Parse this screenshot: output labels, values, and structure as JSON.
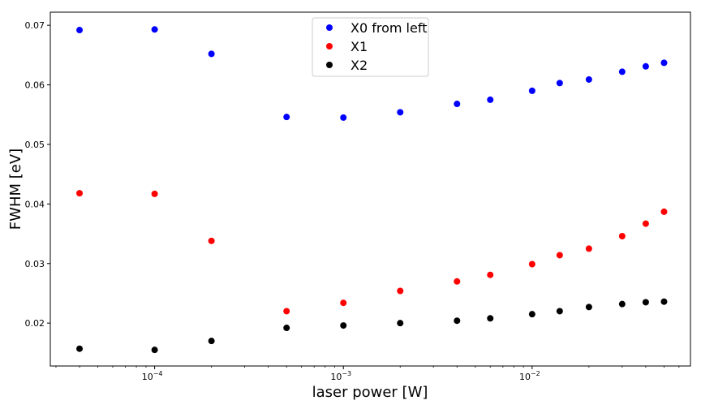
{
  "chart_data": {
    "type": "scatter",
    "title": "",
    "xlabel": "laser power [W]",
    "ylabel": "FWHM [eV]",
    "xscale": "log",
    "xlim": [
      2.8e-05,
      0.069
    ],
    "ylim": [
      0.0128,
      0.0722
    ],
    "x": [
      4e-05,
      0.0001,
      0.0002,
      0.0005,
      0.001,
      0.002,
      0.004,
      0.006,
      0.01,
      0.014,
      0.02,
      0.03,
      0.04,
      0.05
    ],
    "x_ticks": [
      {
        "value": 0.0001,
        "base": "10",
        "exp": "−4"
      },
      {
        "value": 0.001,
        "base": "10",
        "exp": "−3"
      },
      {
        "value": 0.01,
        "base": "10",
        "exp": "−2"
      }
    ],
    "y_ticks": [
      {
        "value": 0.02,
        "label": "0.02"
      },
      {
        "value": 0.03,
        "label": "0.03"
      },
      {
        "value": 0.04,
        "label": "0.04"
      },
      {
        "value": 0.05,
        "label": "0.05"
      },
      {
        "value": 0.06,
        "label": "0.06"
      },
      {
        "value": 0.07,
        "label": "0.07"
      }
    ],
    "grid": false,
    "legend_position": "top-center",
    "series": [
      {
        "name": "X0 from left",
        "color": "#0000ff",
        "values": [
          0.0692,
          0.0693,
          0.0652,
          0.0546,
          0.0545,
          0.0554,
          0.0568,
          0.0575,
          0.059,
          0.0603,
          0.0609,
          0.0622,
          0.0631,
          0.0637
        ]
      },
      {
        "name": "X1",
        "color": "#ff0000",
        "values": [
          0.0418,
          0.0417,
          0.0338,
          0.022,
          0.0234,
          0.0254,
          0.027,
          0.0281,
          0.0299,
          0.0314,
          0.0325,
          0.0346,
          0.0367,
          0.0387
        ]
      },
      {
        "name": "X2",
        "color": "#000000",
        "values": [
          0.0157,
          0.0155,
          0.017,
          0.0192,
          0.0196,
          0.02,
          0.0204,
          0.0208,
          0.0215,
          0.022,
          0.0227,
          0.0232,
          0.0235,
          0.0236
        ]
      }
    ]
  }
}
